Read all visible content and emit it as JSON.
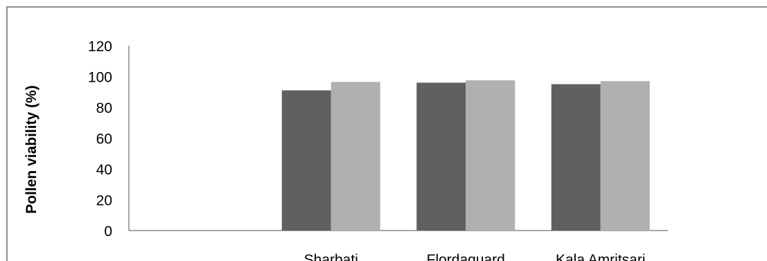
{
  "chart_data": {
    "type": "bar",
    "title": "",
    "xlabel": "",
    "ylabel": "Pollen viability (%)",
    "ylim": [
      0,
      120
    ],
    "yticks": [
      0,
      20,
      40,
      60,
      80,
      100,
      120
    ],
    "grid": false,
    "legend": "none",
    "categories": [
      "",
      "Sharbati",
      "Flordaguard",
      "Kala Amritsari"
    ],
    "series": [
      {
        "values": [
          null,
          91,
          96,
          95
        ],
        "color": "#606060"
      },
      {
        "values": [
          null,
          96.5,
          97.5,
          97
        ],
        "color": "#b0b0b0"
      }
    ]
  }
}
